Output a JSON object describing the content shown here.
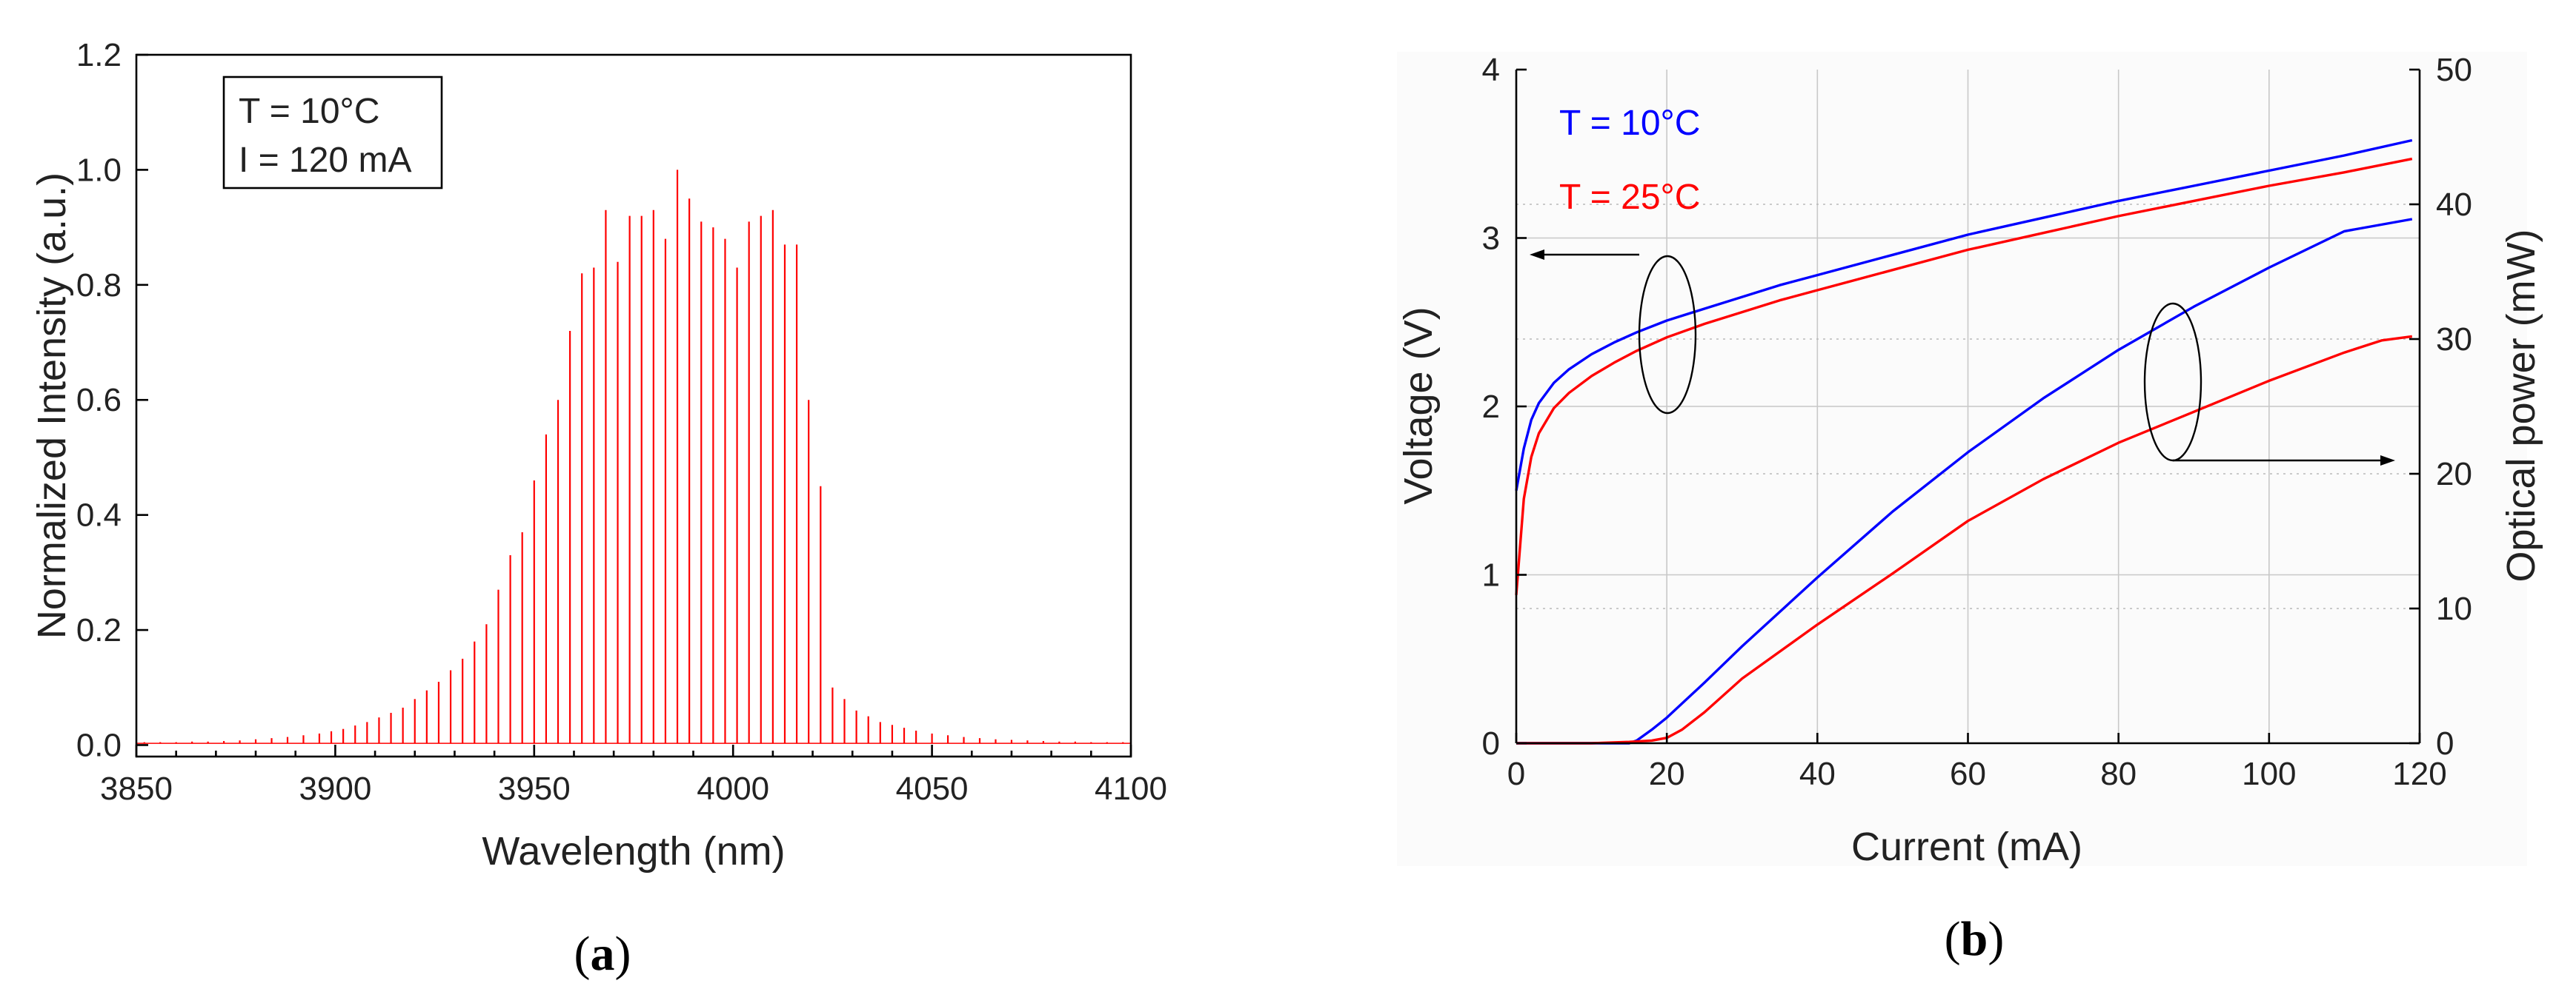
{
  "chart_data": [
    {
      "type": "line",
      "panel": "(a)",
      "xlabel": "Wavelength (nm)",
      "ylabel": "Normalized Intensity (a.u.)",
      "xlim": [
        3850,
        4100
      ],
      "ylim": [
        -0.02,
        1.2
      ],
      "xticks": [
        3850,
        3900,
        3950,
        4000,
        4050,
        4100
      ],
      "yticks": [
        0.0,
        0.2,
        0.4,
        0.6,
        0.8,
        1.0,
        1.2
      ],
      "xtick_labels": [
        "3850",
        "3900",
        "3950",
        "4000",
        "4050",
        "4100"
      ],
      "ytick_labels": [
        "0.0",
        "0.2",
        "0.4",
        "0.6",
        "0.8",
        "1.0",
        "1.2"
      ],
      "annotation": [
        "T = 10°C",
        "I = 120 mA"
      ],
      "series": [
        {
          "name": "Spectrum",
          "color": "#ff0000",
          "style": "peaks",
          "x": [
            3852,
            3856,
            3860,
            3864,
            3868,
            3872,
            3876,
            3880,
            3884,
            3888,
            3892,
            3896,
            3899,
            3902,
            3905,
            3908,
            3911,
            3914,
            3917,
            3920,
            3923,
            3926,
            3929,
            3932,
            3935,
            3938,
            3941,
            3944,
            3947,
            3950,
            3953,
            3956,
            3959,
            3962,
            3965,
            3968,
            3971,
            3974,
            3977,
            3980,
            3983,
            3986,
            3989,
            3992,
            3995,
            3998,
            4001,
            4004,
            4007,
            4010,
            4013,
            4016,
            4019,
            4022,
            4025,
            4028,
            4031,
            4034,
            4037,
            4040,
            4043,
            4046,
            4050,
            4054,
            4058,
            4062,
            4066,
            4070,
            4074,
            4078,
            4082,
            4086,
            4090,
            4094,
            4098
          ],
          "y": [
            0.005,
            0.005,
            0.005,
            0.006,
            0.006,
            0.007,
            0.008,
            0.01,
            0.012,
            0.014,
            0.017,
            0.02,
            0.024,
            0.028,
            0.034,
            0.04,
            0.048,
            0.056,
            0.065,
            0.08,
            0.095,
            0.11,
            0.13,
            0.15,
            0.18,
            0.21,
            0.27,
            0.33,
            0.37,
            0.46,
            0.54,
            0.6,
            0.72,
            0.82,
            0.83,
            0.93,
            0.84,
            0.92,
            0.92,
            0.93,
            0.88,
            1.0,
            0.95,
            0.91,
            0.9,
            0.88,
            0.83,
            0.91,
            0.92,
            0.93,
            0.87,
            0.87,
            0.6,
            0.45,
            0.1,
            0.08,
            0.06,
            0.05,
            0.04,
            0.035,
            0.03,
            0.025,
            0.02,
            0.017,
            0.014,
            0.012,
            0.01,
            0.009,
            0.008,
            0.007,
            0.006,
            0.006,
            0.005,
            0.005,
            0.005
          ]
        }
      ]
    },
    {
      "type": "line",
      "panel": "(b)",
      "xlabel": "Current (mA)",
      "ylabel": "Voltage (V)",
      "ylabel_right": "Optical power (mW)",
      "xlim": [
        0,
        120
      ],
      "ylim": [
        0,
        4
      ],
      "ylim_right": [
        0,
        50
      ],
      "xticks": [
        0,
        20,
        40,
        60,
        80,
        100,
        120
      ],
      "yticks": [
        0,
        1,
        2,
        3,
        4
      ],
      "yticks_right": [
        0,
        10,
        20,
        30,
        40,
        50
      ],
      "xtick_labels": [
        "0",
        "20",
        "40",
        "60",
        "80",
        "100",
        "120"
      ],
      "ytick_labels": [
        "0",
        "1",
        "2",
        "3",
        "4"
      ],
      "ytick_labels_right": [
        "0",
        "10",
        "20",
        "30",
        "40",
        "50"
      ],
      "grid": true,
      "legend": [
        {
          "label": "T = 10°C",
          "color": "#0000ff"
        },
        {
          "label": "T = 25°C",
          "color": "#ff0000"
        }
      ],
      "series": [
        {
          "name": "Voltage, T = 10°C",
          "axis": "left",
          "color": "#0000ff",
          "x": [
            0,
            1,
            2,
            3,
            5,
            7,
            10,
            13,
            16,
            20,
            25,
            30,
            35,
            40,
            50,
            60,
            70,
            80,
            90,
            100,
            110,
            119
          ],
          "y": [
            1.5,
            1.75,
            1.92,
            2.02,
            2.14,
            2.22,
            2.31,
            2.38,
            2.44,
            2.51,
            2.58,
            2.65,
            2.72,
            2.78,
            2.9,
            3.02,
            3.12,
            3.22,
            3.31,
            3.4,
            3.49,
            3.58
          ]
        },
        {
          "name": "Voltage, T = 25°C",
          "axis": "left",
          "color": "#ff0000",
          "x": [
            0,
            1,
            2,
            3,
            5,
            7,
            10,
            13,
            16,
            20,
            25,
            30,
            35,
            40,
            50,
            60,
            70,
            80,
            90,
            100,
            110,
            119
          ],
          "y": [
            0.88,
            1.45,
            1.7,
            1.84,
            1.99,
            2.08,
            2.18,
            2.26,
            2.33,
            2.41,
            2.49,
            2.56,
            2.63,
            2.69,
            2.81,
            2.93,
            3.03,
            3.13,
            3.22,
            3.31,
            3.39,
            3.47
          ]
        },
        {
          "name": "Optical power, T = 10°C",
          "axis": "right",
          "color": "#0000ff",
          "x": [
            0,
            10,
            15,
            16,
            18,
            20,
            25,
            30,
            40,
            50,
            60,
            70,
            80,
            90,
            100,
            110,
            119
          ],
          "y": [
            0,
            0,
            0,
            0.2,
            1.0,
            1.9,
            4.5,
            7.2,
            12.3,
            17.2,
            21.6,
            25.6,
            29.2,
            32.4,
            35.3,
            38.0,
            38.9
          ]
        },
        {
          "name": "Optical power, T = 25°C",
          "axis": "right",
          "color": "#ff0000",
          "x": [
            0,
            10,
            15,
            18,
            20,
            22,
            25,
            30,
            40,
            50,
            60,
            70,
            80,
            90,
            100,
            110,
            115,
            119
          ],
          "y": [
            0,
            0,
            0.1,
            0.2,
            0.4,
            1.0,
            2.3,
            4.8,
            8.8,
            12.6,
            16.5,
            19.6,
            22.3,
            24.6,
            26.9,
            29.0,
            29.9,
            30.2
          ]
        }
      ]
    }
  ],
  "captions": {
    "a": "(a)",
    "b": "(b)"
  }
}
